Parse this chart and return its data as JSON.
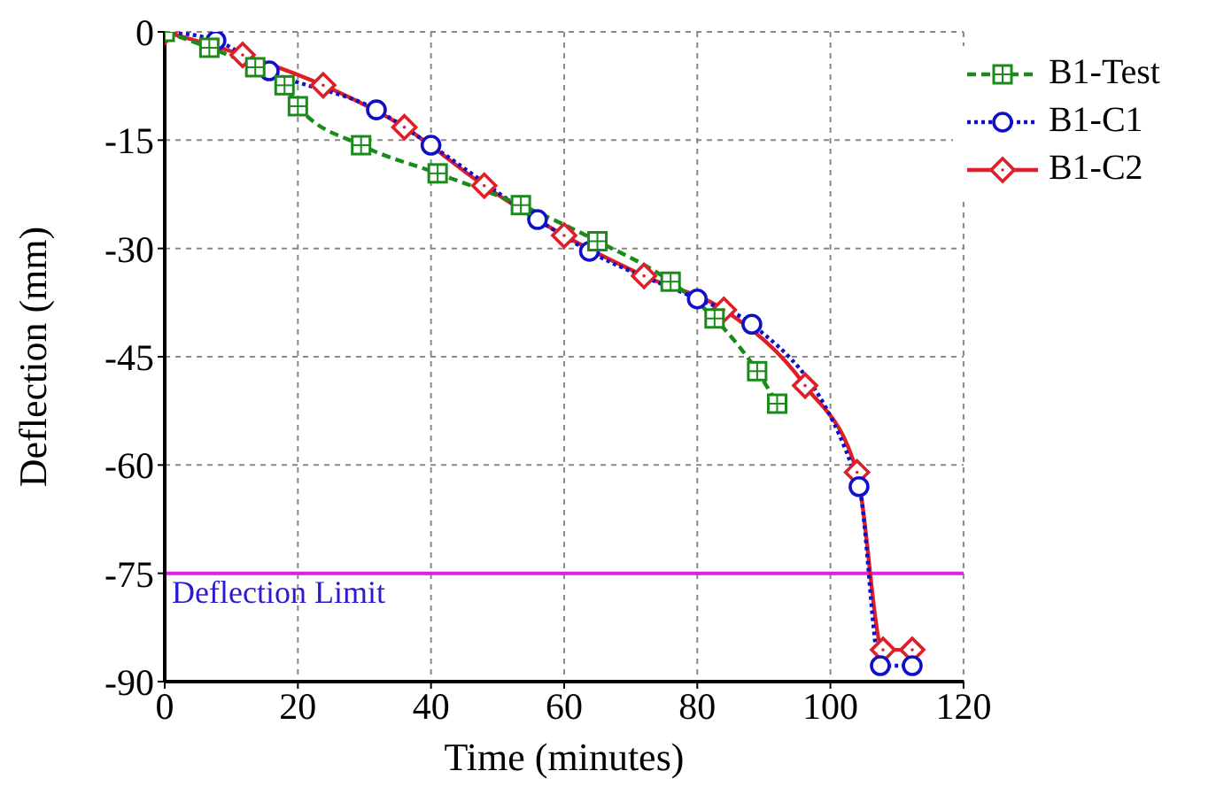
{
  "chart_data": {
    "type": "line",
    "xlabel": "Time (minutes)",
    "ylabel": "Deflection (mm)",
    "xlim": [
      0,
      120
    ],
    "xticks": [
      0,
      20,
      40,
      60,
      80,
      100,
      120
    ],
    "ylim": [
      -90,
      0
    ],
    "yticks": [
      -90,
      -75,
      -60,
      -45,
      -30,
      -15,
      0
    ],
    "grid": true,
    "legend": "top right",
    "series": [
      {
        "name": "B1-Test",
        "color": "#1a8a1a",
        "marker": "square",
        "line_style": "dashed",
        "x": [
          0,
          6.7,
          13.6,
          18,
          20,
          29.5,
          41,
          53.5,
          65,
          76,
          82.6,
          89,
          92
        ],
        "values": [
          0,
          -2.2,
          -4.9,
          -7.4,
          -10.3,
          -15.7,
          -19.6,
          -24,
          -29,
          -34.6,
          -39.7,
          -47,
          -51.5
        ]
      },
      {
        "name": "B1-C1",
        "color": "#1010c8",
        "marker": "circle",
        "line_style": "dotted",
        "x": [
          0,
          7.7,
          15.7,
          31.8,
          40,
          56,
          63.8,
          80,
          88.2,
          104.3,
          107.5,
          112.3
        ],
        "values": [
          0,
          -1.2,
          -5.4,
          -10.8,
          -15.7,
          -26,
          -30.4,
          -37,
          -40.5,
          -63,
          -87.8,
          -87.8
        ]
      },
      {
        "name": "B1-C2",
        "color": "#e01e28",
        "marker": "diamond",
        "line_style": "solid",
        "x": [
          0,
          11.7,
          23.8,
          36,
          48,
          60,
          72,
          84,
          96.2,
          104,
          107.9,
          112.3
        ],
        "values": [
          0,
          -3.2,
          -7.4,
          -13.2,
          -21.3,
          -28.2,
          -33.8,
          -38.5,
          -49,
          -61,
          -85.6,
          -85.6
        ]
      }
    ],
    "ref_lines": [
      {
        "axis": "y",
        "value": -75,
        "label": "Deflection Limit",
        "color": "#e020e0"
      }
    ]
  }
}
